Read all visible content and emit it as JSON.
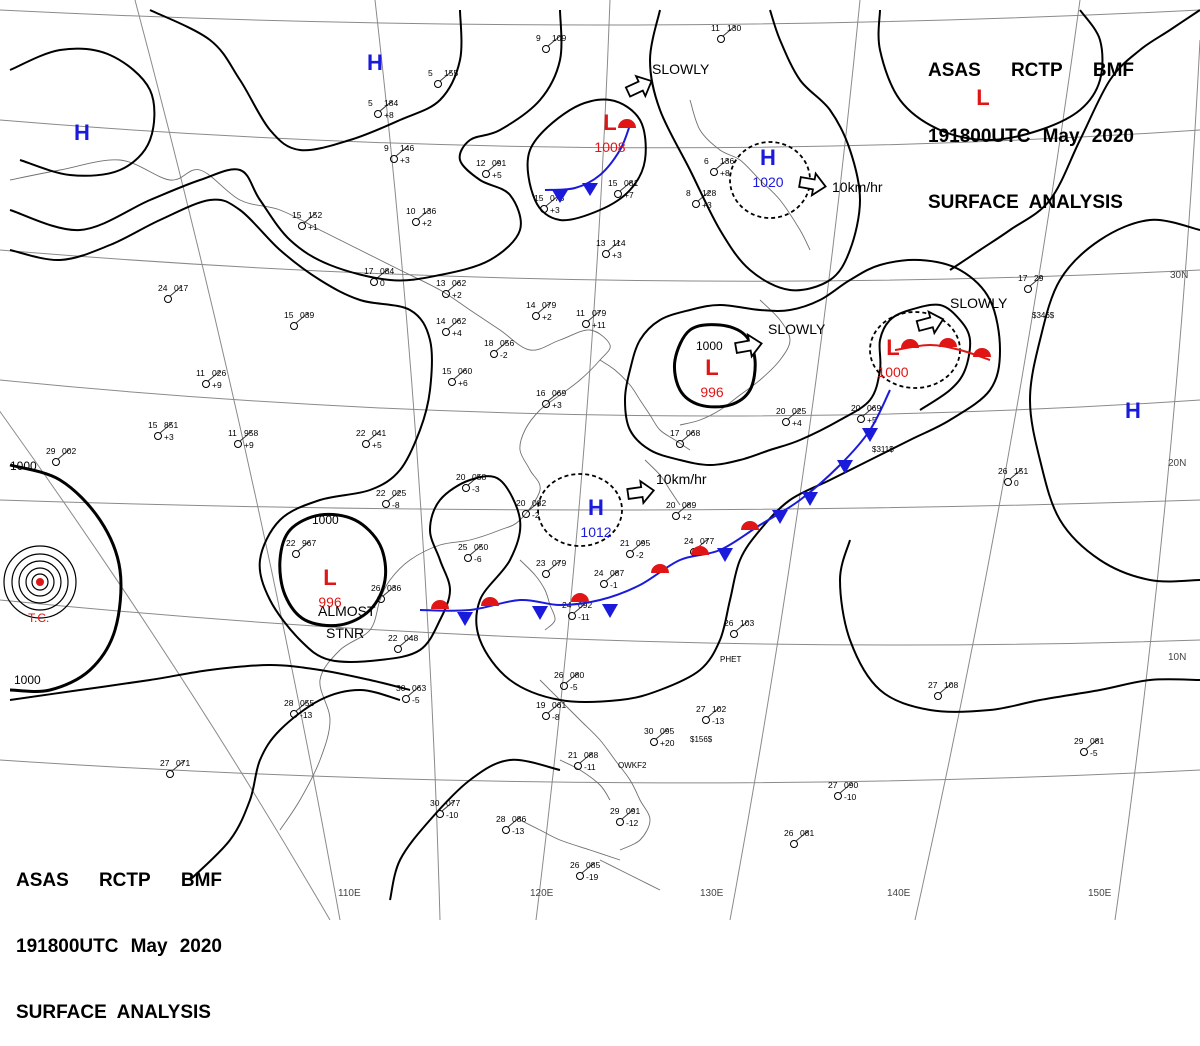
{
  "header": {
    "line1": [
      "ASAS",
      "RCTP",
      "BMF"
    ],
    "line2": [
      "191800UTC",
      "May",
      "2020"
    ],
    "line3": "SURFACE  ANALYSIS"
  },
  "colors": {
    "high": "#1a1adb",
    "low": "#e01515",
    "line": "#000000",
    "grid": "#8a8a8a",
    "coast": "#707070"
  },
  "longitude_labels": [
    "110E",
    "120E",
    "130E",
    "140E",
    "150E"
  ],
  "latitude_labels": [
    "30N",
    "20N",
    "10N"
  ],
  "pressure_centers": [
    {
      "type": "H",
      "value": ""
    },
    {
      "type": "H",
      "value": ""
    },
    {
      "type": "L",
      "value": "1008"
    },
    {
      "type": "H",
      "value": "1020"
    },
    {
      "type": "L",
      "value": ""
    },
    {
      "type": "L",
      "value": "996"
    },
    {
      "type": "L",
      "value": "1000"
    },
    {
      "type": "H",
      "value": ""
    },
    {
      "type": "H",
      "value": "1012"
    },
    {
      "type": "L",
      "value": "996"
    }
  ],
  "isobar_labels": [
    "1000",
    "1000",
    "1000",
    "1000"
  ],
  "motion_labels": [
    "SLOWLY",
    "10km/hr",
    "SLOWLY",
    "SLOWLY",
    "10km/hr",
    "ALMOST",
    "STNR"
  ],
  "tropical_cyclone": "T.C.",
  "station_plots": [
    {
      "temp": "9",
      "pressure": "109",
      "tendency": ""
    },
    {
      "temp": "11",
      "pressure": "130",
      "tendency": ""
    },
    {
      "temp": "5",
      "pressure": "155",
      "tendency": ""
    },
    {
      "temp": "5",
      "pressure": "184",
      "tendency": "+8"
    },
    {
      "temp": "9",
      "pressure": "146",
      "tendency": "+3"
    },
    {
      "temp": "12",
      "pressure": "091",
      "tendency": "+5"
    },
    {
      "temp": "10",
      "pressure": "136",
      "tendency": "+2"
    },
    {
      "temp": "15",
      "pressure": "152",
      "tendency": "+1"
    },
    {
      "temp": "17",
      "pressure": "084",
      "tendency": "0"
    },
    {
      "temp": "24",
      "pressure": "017",
      "tendency": ""
    },
    {
      "temp": "15",
      "pressure": "039",
      "tendency": ""
    },
    {
      "temp": "13",
      "pressure": "062",
      "tendency": "+2"
    },
    {
      "temp": "14",
      "pressure": "062",
      "tendency": "+4"
    },
    {
      "temp": "18",
      "pressure": "056",
      "tendency": "-2"
    },
    {
      "temp": "14",
      "pressure": "079",
      "tendency": "+2"
    },
    {
      "temp": "11",
      "pressure": "079",
      "tendency": "+11"
    },
    {
      "temp": "15",
      "pressure": "060",
      "tendency": "+6"
    },
    {
      "temp": "16",
      "pressure": "069",
      "tendency": "+3"
    },
    {
      "temp": "11",
      "pressure": "026",
      "tendency": "+9"
    },
    {
      "temp": "15",
      "pressure": "851",
      "tendency": "+3"
    },
    {
      "temp": "11",
      "pressure": "958",
      "tendency": "+9"
    },
    {
      "temp": "22",
      "pressure": "041",
      "tendency": "+5"
    },
    {
      "temp": "29",
      "pressure": "002",
      "tendency": ""
    },
    {
      "temp": "20",
      "pressure": "058",
      "tendency": "-3"
    },
    {
      "temp": "22",
      "pressure": "025",
      "tendency": "-8"
    },
    {
      "temp": "20",
      "pressure": "082",
      "tendency": "-2"
    },
    {
      "temp": "22",
      "pressure": "967",
      "tendency": ""
    },
    {
      "temp": "25",
      "pressure": "050",
      "tendency": "-6"
    },
    {
      "temp": "26",
      "pressure": "036",
      "tendency": ""
    },
    {
      "temp": "22",
      "pressure": "048",
      "tendency": ""
    },
    {
      "temp": "23",
      "pressure": "079",
      "tendency": ""
    },
    {
      "temp": "24",
      "pressure": "092",
      "tendency": "-11"
    },
    {
      "temp": "24",
      "pressure": "087",
      "tendency": "-1"
    },
    {
      "temp": "21",
      "pressure": "095",
      "tendency": "-2"
    },
    {
      "temp": "24",
      "pressure": "077",
      "tendency": ""
    },
    {
      "temp": "20",
      "pressure": "089",
      "tendency": "+2"
    },
    {
      "temp": "17",
      "pressure": "068",
      "tendency": ""
    },
    {
      "temp": "20",
      "pressure": "025",
      "tendency": "+4"
    },
    {
      "temp": "20",
      "pressure": "069",
      "tendency": "+5"
    },
    {
      "temp": "26",
      "pressure": "151",
      "tendency": "0"
    },
    {
      "temp": "26",
      "pressure": "103",
      "tendency": ""
    },
    {
      "temp": "27",
      "pressure": "102",
      "tendency": "-13"
    },
    {
      "temp": "27",
      "pressure": "108",
      "tendency": ""
    },
    {
      "temp": "29",
      "pressure": "081",
      "tendency": "-5"
    },
    {
      "temp": "28",
      "pressure": "055",
      "tendency": "-13"
    },
    {
      "temp": "30",
      "pressure": "063",
      "tendency": "-5"
    },
    {
      "temp": "27",
      "pressure": "071",
      "tendency": ""
    },
    {
      "temp": "30",
      "pressure": "077",
      "tendency": "-10"
    },
    {
      "temp": "28",
      "pressure": "086",
      "tendency": "-13"
    },
    {
      "temp": "26",
      "pressure": "085",
      "tendency": "-19"
    },
    {
      "temp": "30",
      "pressure": "095",
      "tendency": "+20"
    },
    {
      "temp": "27",
      "pressure": "090",
      "tendency": "-10"
    },
    {
      "temp": "26",
      "pressure": "081",
      "tendency": ""
    },
    {
      "temp": "26",
      "pressure": "080",
      "tendency": "-5"
    },
    {
      "temp": "19",
      "pressure": "061",
      "tendency": "-8"
    },
    {
      "temp": "21",
      "pressure": "088",
      "tendency": "-11"
    },
    {
      "temp": "29",
      "pressure": "091",
      "tendency": "-12"
    },
    {
      "temp": "17",
      "pressure": "29",
      "tendency": ""
    },
    {
      "temp": "13",
      "pressure": "114",
      "tendency": "+3"
    },
    {
      "temp": "15",
      "pressure": "078",
      "tendency": "+3"
    },
    {
      "temp": "15",
      "pressure": "081",
      "tendency": "+7"
    },
    {
      "temp": "8",
      "pressure": "128",
      "tendency": "+3"
    },
    {
      "temp": "6",
      "pressure": "136",
      "tendency": "+8"
    }
  ],
  "text_codes": [
    "$346$",
    "$311$",
    "$156$",
    "OWKF2",
    "PHET"
  ]
}
